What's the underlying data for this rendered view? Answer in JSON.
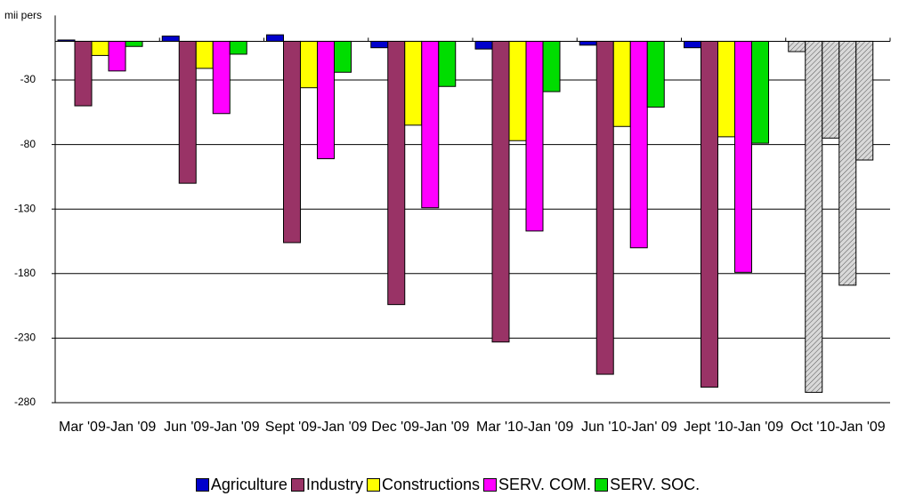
{
  "chart_data": {
    "type": "bar",
    "y_label": "mii pers",
    "categories": [
      "Mar '09-Jan '09",
      "Jun '09-Jan '09",
      "Sept '09-Jan '09",
      "Dec '09-Jan '09",
      "Mar '10-Jan '09",
      "Jun '10-Jan' 09",
      "Jept '10-Jan '09",
      "Oct '10-Jan '09"
    ],
    "series": [
      {
        "name": "Agriculture",
        "color": "#0000cc",
        "values": [
          1,
          4,
          5,
          -5,
          -6,
          -3,
          -5,
          -8
        ]
      },
      {
        "name": "Industry",
        "color": "#993366",
        "values": [
          -50,
          -110,
          -156,
          -204,
          -233,
          -258,
          -268,
          -272
        ]
      },
      {
        "name": "Constructions",
        "color": "#ffff00",
        "values": [
          -11,
          -21,
          -36,
          -65,
          -77,
          -66,
          -74,
          -75
        ]
      },
      {
        "name": "SERV. COM.",
        "color": "#ff00ff",
        "values": [
          -23,
          -56,
          -91,
          -129,
          -147,
          -160,
          -179,
          -189
        ]
      },
      {
        "name": "SERV. SOC.",
        "color": "#00dd00",
        "values": [
          -4,
          -10,
          -24,
          -35,
          -39,
          -51,
          -79,
          -92
        ]
      }
    ],
    "hatched": {
      "categories": [
        "Oct '10-Jan '09"
      ],
      "color": "#d9d9d9"
    },
    "ylim": [
      -280,
      20
    ],
    "yticks": [
      -30,
      -80,
      -130,
      -180,
      -230,
      -280
    ],
    "grid": true
  }
}
